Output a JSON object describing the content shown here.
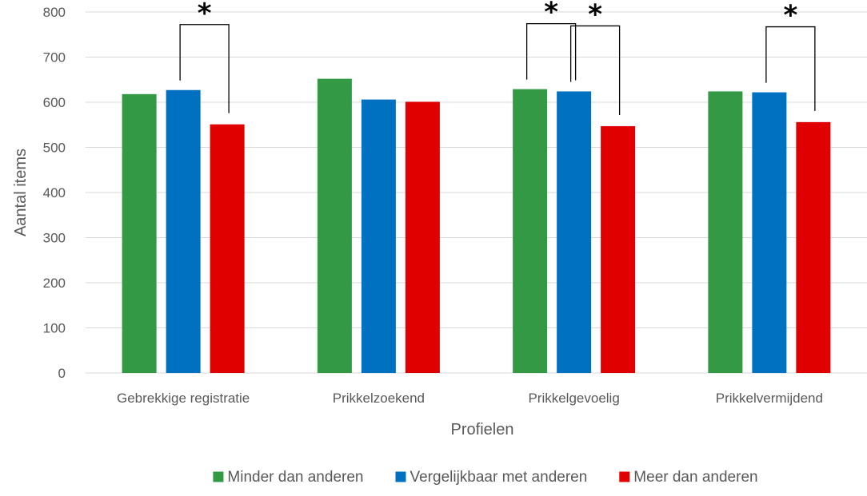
{
  "chart_data": {
    "type": "bar",
    "title": "",
    "xlabel": "Profielen",
    "ylabel": "Aantal items",
    "ylim": [
      0,
      800
    ],
    "yticks": [
      0,
      100,
      200,
      300,
      400,
      500,
      600,
      700,
      800
    ],
    "grid": true,
    "legend_position": "bottom",
    "categories": [
      "Gebrekkige registratie",
      "Prikkelzoekend",
      "Prikkelgevoelig",
      "Prikkelvermijdend"
    ],
    "series": [
      {
        "name": "Minder dan anderen",
        "color": "#339944",
        "values": [
          618,
          652,
          629,
          624
        ]
      },
      {
        "name": "Vergelijkbaar met anderen",
        "color": "#0070C0",
        "values": [
          627,
          606,
          624,
          622
        ]
      },
      {
        "name": "Meer dan anderen",
        "color": "#E00000",
        "values": [
          551,
          601,
          547,
          556
        ]
      }
    ],
    "significance": [
      {
        "category": "Gebrekkige registratie",
        "pair": [
          "Vergelijkbaar met anderen",
          "Meer dan anderen"
        ],
        "marker": "*"
      },
      {
        "category": "Prikkelgevoelig",
        "pair": [
          "Minder dan anderen",
          "Vergelijkbaar met anderen"
        ],
        "marker": "*"
      },
      {
        "category": "Prikkelgevoelig",
        "pair": [
          "Vergelijkbaar met anderen",
          "Meer dan anderen"
        ],
        "marker": "*"
      },
      {
        "category": "Prikkelvermijdend",
        "pair": [
          "Vergelijkbaar met anderen",
          "Meer dan anderen"
        ],
        "marker": "*"
      }
    ]
  }
}
